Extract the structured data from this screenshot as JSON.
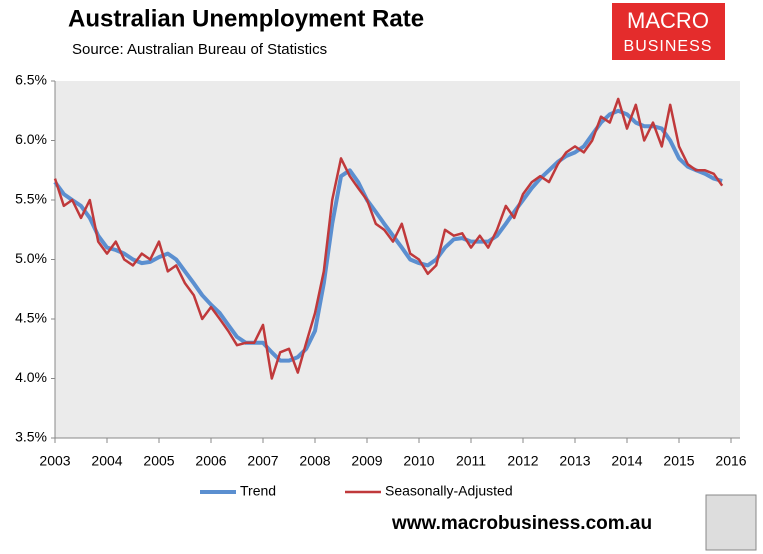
{
  "chart_data": {
    "type": "line",
    "title": "Australian Unemployment Rate",
    "subtitle": "Source: Australian Bureau of Statistics",
    "logo": [
      "MACRO",
      "BUSINESS"
    ],
    "footer": "www.macrobusiness.com.au",
    "x": [
      2003,
      2003.17,
      2003.33,
      2003.5,
      2003.67,
      2003.83,
      2004,
      2004.17,
      2004.33,
      2004.5,
      2004.67,
      2004.83,
      2005,
      2005.17,
      2005.33,
      2005.5,
      2005.67,
      2005.83,
      2006,
      2006.17,
      2006.33,
      2006.5,
      2006.67,
      2006.83,
      2007,
      2007.17,
      2007.33,
      2007.5,
      2007.67,
      2007.83,
      2008,
      2008.17,
      2008.33,
      2008.5,
      2008.67,
      2008.83,
      2009,
      2009.17,
      2009.33,
      2009.5,
      2009.67,
      2009.83,
      2010,
      2010.17,
      2010.33,
      2010.5,
      2010.67,
      2010.83,
      2011,
      2011.17,
      2011.33,
      2011.5,
      2011.67,
      2011.83,
      2012,
      2012.17,
      2012.33,
      2012.5,
      2012.67,
      2012.83,
      2013,
      2013.17,
      2013.33,
      2013.5,
      2013.67,
      2013.83,
      2014,
      2014.17,
      2014.33,
      2014.5,
      2014.67,
      2014.83,
      2015,
      2015.17,
      2015.33,
      2015.5,
      2015.67,
      2015.83
    ],
    "series": [
      {
        "name": "Trend",
        "color": "#5b8fd0",
        "width": 4,
        "values": [
          5.65,
          5.55,
          5.5,
          5.45,
          5.35,
          5.2,
          5.1,
          5.08,
          5.05,
          5.0,
          4.97,
          4.98,
          5.02,
          5.05,
          5.0,
          4.9,
          4.8,
          4.7,
          4.62,
          4.55,
          4.45,
          4.35,
          4.3,
          4.3,
          4.3,
          4.22,
          4.15,
          4.15,
          4.18,
          4.25,
          4.4,
          4.8,
          5.3,
          5.7,
          5.75,
          5.65,
          5.5,
          5.4,
          5.3,
          5.2,
          5.1,
          5.0,
          4.97,
          4.95,
          5.0,
          5.1,
          5.17,
          5.18,
          5.15,
          5.15,
          5.15,
          5.2,
          5.3,
          5.4,
          5.5,
          5.6,
          5.68,
          5.75,
          5.82,
          5.87,
          5.9,
          5.95,
          6.05,
          6.15,
          6.22,
          6.25,
          6.22,
          6.15,
          6.12,
          6.12,
          6.1,
          6.0,
          5.85,
          5.78,
          5.75,
          5.72,
          5.68,
          5.66
        ]
      },
      {
        "name": "Seasonally-Adjusted",
        "color": "#c0393b",
        "width": 2.5,
        "values": [
          5.68,
          5.45,
          5.5,
          5.35,
          5.5,
          5.15,
          5.05,
          5.15,
          5.0,
          4.95,
          5.05,
          5.0,
          5.15,
          4.9,
          4.95,
          4.8,
          4.7,
          4.5,
          4.6,
          4.5,
          4.4,
          4.28,
          4.3,
          4.3,
          4.45,
          4.0,
          4.22,
          4.25,
          4.05,
          4.3,
          4.55,
          4.9,
          5.5,
          5.85,
          5.7,
          5.6,
          5.5,
          5.3,
          5.25,
          5.15,
          5.3,
          5.05,
          5.0,
          4.88,
          4.95,
          5.25,
          5.2,
          5.22,
          5.1,
          5.2,
          5.1,
          5.25,
          5.45,
          5.35,
          5.55,
          5.65,
          5.7,
          5.65,
          5.8,
          5.9,
          5.95,
          5.9,
          6.0,
          6.2,
          6.15,
          6.35,
          6.1,
          6.3,
          6.0,
          6.15,
          5.95,
          6.3,
          5.95,
          5.8,
          5.75,
          5.75,
          5.72,
          5.62
        ]
      }
    ],
    "xlim": [
      2003,
      2016
    ],
    "xticks": [
      2003,
      2004,
      2005,
      2006,
      2007,
      2008,
      2009,
      2010,
      2011,
      2012,
      2013,
      2014,
      2015,
      2016
    ],
    "ylim": [
      3.5,
      6.5
    ],
    "yticks": [
      {
        "value": 3.5,
        "label": "3.5%"
      },
      {
        "value": 4.0,
        "label": "4.0%"
      },
      {
        "value": 4.5,
        "label": "4.5%"
      },
      {
        "value": 5.0,
        "label": "5.0%"
      },
      {
        "value": 5.5,
        "label": "5.5%"
      },
      {
        "value": 6.0,
        "label": "6.0%"
      },
      {
        "value": 6.5,
        "label": "6.5%"
      }
    ],
    "grid": false,
    "legend": "bottom"
  }
}
